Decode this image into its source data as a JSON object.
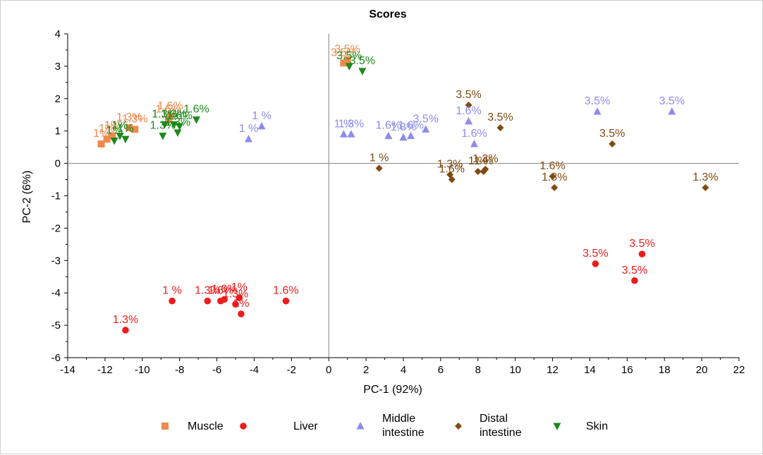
{
  "colors": {
    "Muscle": "#f0894d",
    "Liver": "#ee1c1c",
    "Middle intestine": "#8c8cf0",
    "Distal intestine": "#7f4a10",
    "Skin": "#1a8a1a"
  },
  "legend": {
    "items": [
      {
        "name": "Muscle",
        "lines": [
          "Muscle"
        ],
        "marker": "square"
      },
      {
        "name": "Liver",
        "lines": [
          "Liver"
        ],
        "marker": "circle"
      },
      {
        "name": "Middle intestine",
        "lines": [
          "Middle",
          "intestine"
        ],
        "marker": "triangle-up"
      },
      {
        "name": "Distal intestine",
        "lines": [
          "Distal",
          "intestine"
        ],
        "marker": "diamond"
      },
      {
        "name": "Skin",
        "lines": [
          "Skin"
        ],
        "marker": "triangle-down"
      }
    ]
  },
  "chart_data": {
    "type": "scatter",
    "title": "Scores",
    "xlabel": "PC-1 (92%)",
    "ylabel": "PC-2 (6%)",
    "xlim": [
      -14,
      22
    ],
    "ylim": [
      -6,
      4
    ],
    "xticks": [
      -14,
      -12,
      -10,
      -8,
      -6,
      -4,
      -2,
      0,
      2,
      4,
      6,
      8,
      10,
      12,
      14,
      16,
      18,
      20,
      22
    ],
    "yticks": [
      -6,
      -5,
      -4,
      -3,
      -2,
      -1,
      0,
      1,
      2,
      3,
      4
    ],
    "grid": false,
    "zero_lines": true,
    "legend_position": "bottom",
    "series": [
      {
        "name": "Muscle",
        "marker": "square",
        "points": [
          {
            "x": -12.2,
            "y": 0.6,
            "label": "1%"
          },
          {
            "x": -11.9,
            "y": 0.75,
            "label": "1%"
          },
          {
            "x": -11.6,
            "y": 0.85,
            "label": "1%"
          },
          {
            "x": -10.7,
            "y": 1.1,
            "label": "1.3%"
          },
          {
            "x": -10.4,
            "y": 1.05,
            "label": "1.3%"
          },
          {
            "x": -8.6,
            "y": 1.35,
            "label": "1.6%"
          },
          {
            "x": -8.5,
            "y": 1.45,
            "label": "1.6%"
          },
          {
            "x": 0.8,
            "y": 3.1,
            "label": "3.5%"
          },
          {
            "x": 1.0,
            "y": 3.2,
            "label": "3.5%"
          }
        ]
      },
      {
        "name": "Liver",
        "marker": "circle",
        "points": [
          {
            "x": -10.9,
            "y": -5.15,
            "label": "1.3%"
          },
          {
            "x": -8.4,
            "y": -4.25,
            "label": "1 %"
          },
          {
            "x": -6.5,
            "y": -4.25,
            "label": "1.3%"
          },
          {
            "x": -5.8,
            "y": -4.25,
            "label": "1.6%"
          },
          {
            "x": -5.6,
            "y": -4.2,
            "label": "1.6%"
          },
          {
            "x": -5.0,
            "y": -4.35,
            "label": "1.3%"
          },
          {
            "x": -4.8,
            "y": -4.15,
            "label": "1%"
          },
          {
            "x": -4.7,
            "y": -4.65,
            "label": "1%"
          },
          {
            "x": -2.3,
            "y": -4.25,
            "label": "1.6%"
          },
          {
            "x": 14.3,
            "y": -3.1,
            "label": "3.5%"
          },
          {
            "x": 16.4,
            "y": -3.62,
            "label": "3.5%"
          },
          {
            "x": 16.8,
            "y": -2.8,
            "label": "3.5%"
          }
        ]
      },
      {
        "name": "Middle intestine",
        "marker": "triangle-up",
        "points": [
          {
            "x": -4.3,
            "y": 0.75,
            "label": "1 %"
          },
          {
            "x": -3.6,
            "y": 1.15,
            "label": "1 %"
          },
          {
            "x": 0.8,
            "y": 0.9,
            "label": "1 %"
          },
          {
            "x": 1.2,
            "y": 0.9,
            "label": "1.3%"
          },
          {
            "x": 3.2,
            "y": 0.85,
            "label": "1.6%"
          },
          {
            "x": 4.0,
            "y": 0.8,
            "label": "1.3%"
          },
          {
            "x": 4.4,
            "y": 0.85,
            "label": "1.6%"
          },
          {
            "x": 5.2,
            "y": 1.05,
            "label": "3.5%"
          },
          {
            "x": 7.5,
            "y": 1.3,
            "label": "1.6%"
          },
          {
            "x": 7.8,
            "y": 0.6,
            "label": "1.6%"
          },
          {
            "x": 14.4,
            "y": 1.6,
            "label": "3.5%"
          },
          {
            "x": 18.4,
            "y": 1.6,
            "label": "3.5%"
          }
        ]
      },
      {
        "name": "Distal intestine",
        "marker": "diamond",
        "points": [
          {
            "x": 2.7,
            "y": -0.15,
            "label": "1 %"
          },
          {
            "x": 6.5,
            "y": -0.35,
            "label": "1.3%"
          },
          {
            "x": 6.6,
            "y": -0.5,
            "label": "1.6%"
          },
          {
            "x": 7.5,
            "y": 1.8,
            "label": "3.5%"
          },
          {
            "x": 8.0,
            "y": -0.25,
            "label": "1 %"
          },
          {
            "x": 8.3,
            "y": -0.25,
            "label": "1 %"
          },
          {
            "x": 8.4,
            "y": -0.18,
            "label": "1.3%"
          },
          {
            "x": 9.2,
            "y": 1.1,
            "label": "3.5%"
          },
          {
            "x": 12.0,
            "y": -0.4,
            "label": "1.6%"
          },
          {
            "x": 12.1,
            "y": -0.75,
            "label": "1.3%"
          },
          {
            "x": 15.2,
            "y": 0.6,
            "label": "3.5%"
          },
          {
            "x": 20.2,
            "y": -0.75,
            "label": "1.3%"
          }
        ]
      },
      {
        "name": "Skin",
        "marker": "triangle-down",
        "points": [
          {
            "x": -11.5,
            "y": 0.7,
            "label": "1%"
          },
          {
            "x": -11.2,
            "y": 0.85,
            "label": "1%"
          },
          {
            "x": -10.9,
            "y": 0.75,
            "label": "1%"
          },
          {
            "x": -8.9,
            "y": 0.85,
            "label": "1.3%"
          },
          {
            "x": -8.8,
            "y": 1.2,
            "label": "1.3%"
          },
          {
            "x": -8.3,
            "y": 1.2,
            "label": "1.3%"
          },
          {
            "x": -8.1,
            "y": 0.95,
            "label": "1.3%"
          },
          {
            "x": -8.0,
            "y": 1.15,
            "label": "1.6%"
          },
          {
            "x": -7.1,
            "y": 1.35,
            "label": "1.6%"
          },
          {
            "x": 1.1,
            "y": 3.0,
            "label": "3.5%"
          },
          {
            "x": 1.8,
            "y": 2.85,
            "label": "3.5%"
          }
        ]
      }
    ]
  }
}
